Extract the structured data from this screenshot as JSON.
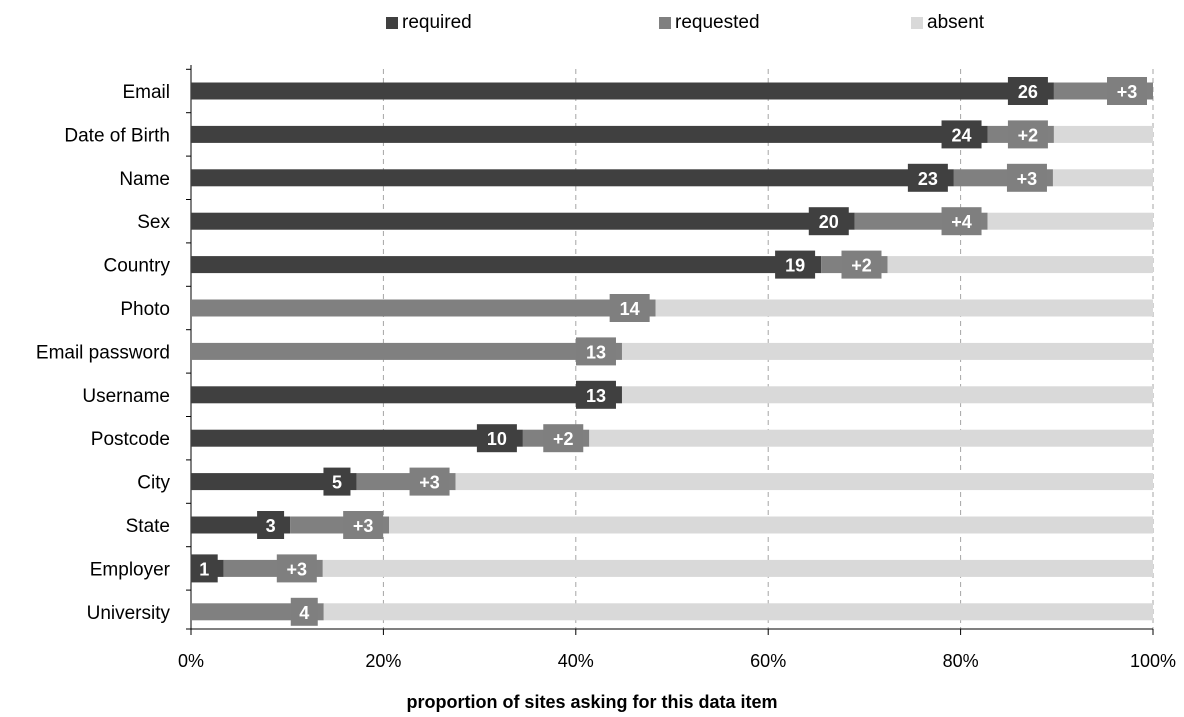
{
  "colors": {
    "required": "#404040",
    "requested": "#808080",
    "absent": "#d9d9d9",
    "label_box_required": "#404040",
    "label_box_requested": "#7f7f7f",
    "grid": "#a6a6a6"
  },
  "legend": {
    "required": "required",
    "requested": "requested",
    "absent": "absent"
  },
  "chart_data": {
    "type": "bar",
    "orientation": "horizontal",
    "stacked": true,
    "title": "",
    "xlabel": "proportion of sites asking for this data item",
    "ylabel": "",
    "xlim": [
      0,
      100
    ],
    "x_ticks": [
      "0%",
      "20%",
      "40%",
      "60%",
      "80%",
      "100%"
    ],
    "grid": "vertical dashed",
    "legend_position": "top",
    "categories": [
      "Email",
      "Date of Birth",
      "Name",
      "Sex",
      "Country",
      "Photo",
      "Email password",
      "Username",
      "Postcode",
      "City",
      "State",
      "Employer",
      "University"
    ],
    "series": [
      {
        "name": "required",
        "values": [
          89.7,
          82.8,
          79.3,
          69.0,
          65.5,
          0,
          0,
          44.8,
          34.5,
          17.2,
          10.3,
          3.4,
          0
        ]
      },
      {
        "name": "requested",
        "values": [
          10.3,
          6.9,
          10.3,
          13.8,
          6.9,
          48.3,
          44.8,
          0,
          6.9,
          10.3,
          10.3,
          10.3,
          13.8
        ]
      },
      {
        "name": "absent",
        "values": [
          0,
          10.3,
          10.4,
          17.2,
          27.6,
          51.7,
          55.2,
          55.2,
          58.6,
          72.5,
          79.4,
          86.3,
          86.2
        ]
      }
    ],
    "bar_labels": [
      {
        "required": "26",
        "requested": "+3"
      },
      {
        "required": "24",
        "requested": "+2"
      },
      {
        "required": "23",
        "requested": "+3"
      },
      {
        "required": "20",
        "requested": "+4"
      },
      {
        "required": "19",
        "requested": "+2"
      },
      {
        "required": "",
        "requested": "14"
      },
      {
        "required": "",
        "requested": "13"
      },
      {
        "required": "13",
        "requested": ""
      },
      {
        "required": "10",
        "requested": "+2"
      },
      {
        "required": "5",
        "requested": "+3"
      },
      {
        "required": "3",
        "requested": "+3"
      },
      {
        "required": "1",
        "requested": "+3"
      },
      {
        "required": "",
        "requested": "4"
      }
    ]
  }
}
